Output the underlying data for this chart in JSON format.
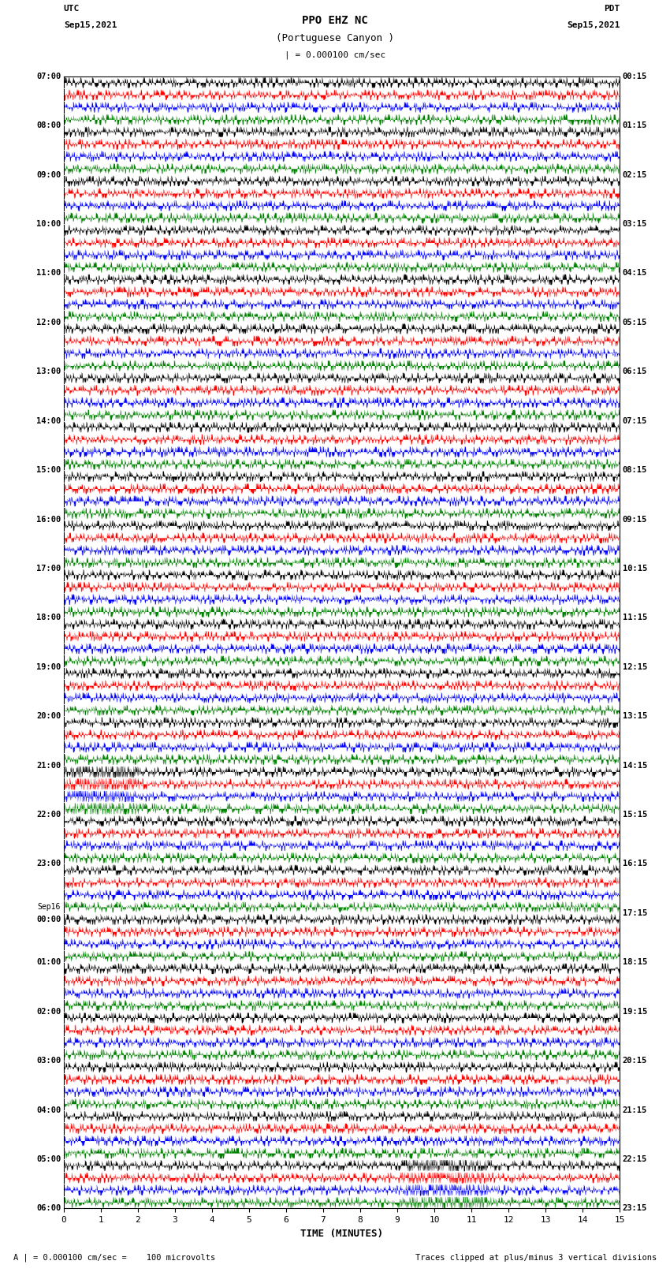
{
  "title_line1": "PPO EHZ NC",
  "title_line2": "(Portuguese Canyon )",
  "title_line3": "| = 0.000100 cm/sec",
  "utc_label": "UTC",
  "utc_date": "Sep15,2021",
  "pdt_label": "PDT",
  "pdt_date": "Sep15,2021",
  "xlabel": "TIME (MINUTES)",
  "footer_left": "A | = 0.000100 cm/sec =    100 microvolts",
  "footer_right": "Traces clipped at plus/minus 3 vertical divisions",
  "left_times": [
    "07:00",
    "",
    "",
    "",
    "08:00",
    "",
    "",
    "",
    "09:00",
    "",
    "",
    "",
    "10:00",
    "",
    "",
    "",
    "11:00",
    "",
    "",
    "",
    "12:00",
    "",
    "",
    "",
    "13:00",
    "",
    "",
    "",
    "14:00",
    "",
    "",
    "",
    "15:00",
    "",
    "",
    "",
    "16:00",
    "",
    "",
    "",
    "17:00",
    "",
    "",
    "",
    "18:00",
    "",
    "",
    "",
    "19:00",
    "",
    "",
    "",
    "20:00",
    "",
    "",
    "",
    "21:00",
    "",
    "",
    "",
    "22:00",
    "",
    "",
    "",
    "23:00",
    "",
    "",
    "",
    "Sep16\n00:00",
    "",
    "",
    "",
    "01:00",
    "",
    "",
    "",
    "02:00",
    "",
    "",
    "",
    "03:00",
    "",
    "",
    "",
    "04:00",
    "",
    "",
    "",
    "05:00",
    "",
    "",
    "",
    "06:00",
    "",
    "",
    ""
  ],
  "right_times": [
    "00:15",
    "",
    "",
    "",
    "01:15",
    "",
    "",
    "",
    "02:15",
    "",
    "",
    "",
    "03:15",
    "",
    "",
    "",
    "04:15",
    "",
    "",
    "",
    "05:15",
    "",
    "",
    "",
    "06:15",
    "",
    "",
    "",
    "07:15",
    "",
    "",
    "",
    "08:15",
    "",
    "",
    "",
    "09:15",
    "",
    "",
    "",
    "10:15",
    "",
    "",
    "",
    "11:15",
    "",
    "",
    "",
    "12:15",
    "",
    "",
    "",
    "13:15",
    "",
    "",
    "",
    "14:15",
    "",
    "",
    "",
    "15:15",
    "",
    "",
    "",
    "16:15",
    "",
    "",
    "",
    "17:15",
    "",
    "",
    "",
    "18:15",
    "",
    "",
    "",
    "19:15",
    "",
    "",
    "",
    "20:15",
    "",
    "",
    "",
    "21:15",
    "",
    "",
    "",
    "22:15",
    "",
    "",
    "",
    "23:15",
    "",
    "",
    ""
  ],
  "trace_colors": [
    "black",
    "red",
    "blue",
    "green"
  ],
  "background_color": "white",
  "n_rows": 92,
  "total_minutes": 15,
  "seed": 12345
}
